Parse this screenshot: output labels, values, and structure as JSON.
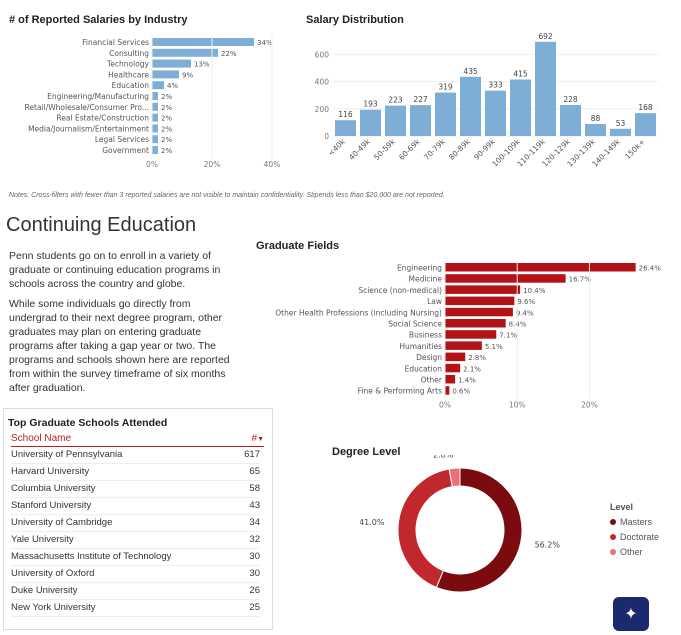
{
  "industry_chart": {
    "title": "# of Reported Salaries by Industry",
    "color": "#7eaed6",
    "axis_ticks": [
      "0%",
      "20%",
      "40%"
    ]
  },
  "salary_chart": {
    "title": "Salary Distribution",
    "color": "#7eaed6",
    "axis_ticks": [
      "0",
      "200",
      "400",
      "600"
    ]
  },
  "notes": "Notes: Cross-filters with fewer than 3 reported salaries are not visible to maintain confidentiality. Stipends less than $20,000 are not reported.",
  "section_title": "Continuing Education",
  "paragraphs": [
    "Penn students go on to enroll in a variety of graduate or continuing education programs in schools across the country and globe.",
    "While some individuals go directly from undergrad to their next degree program, other graduates may plan on entering graduate programs after taking a gap year or two. The programs and schools shown here are reported from within the survey timeframe of six months after graduation."
  ],
  "grad_chart": {
    "title": "Graduate Fields",
    "color": "#b31217",
    "axis_ticks": [
      "0%",
      "10%",
      "20%"
    ]
  },
  "schools_table": {
    "title": "Top Graduate Schools Attended",
    "col_name": "School Name",
    "col_count": "#",
    "rows": [
      {
        "name": "University of Pennsylvania",
        "count": "617"
      },
      {
        "name": "Harvard University",
        "count": "65"
      },
      {
        "name": "Columbia University",
        "count": "58"
      },
      {
        "name": "Stanford University",
        "count": "43"
      },
      {
        "name": "University of Cambridge",
        "count": "34"
      },
      {
        "name": "Yale University",
        "count": "32"
      },
      {
        "name": "Massachusetts Institute of Technology",
        "count": "30"
      },
      {
        "name": "University of Oxford",
        "count": "30"
      },
      {
        "name": "Duke University",
        "count": "26"
      },
      {
        "name": "New York University",
        "count": "25"
      }
    ]
  },
  "degree_chart": {
    "title": "Degree Level",
    "legend_title": "Level"
  },
  "chart_data": [
    {
      "type": "bar",
      "orientation": "horizontal",
      "title": "# of Reported Salaries by Industry",
      "categories": [
        "Financial Services",
        "Consulting",
        "Technology",
        "Healthcare",
        "Education",
        "Engineering/Manufacturing",
        "Retail/Wholesale/Consumer Pro...",
        "Real Estate/Construction",
        "Media/Journalism/Entertainment",
        "Legal Services",
        "Government"
      ],
      "values": [
        34,
        22,
        13,
        9,
        4,
        2,
        2,
        2,
        2,
        2,
        2
      ],
      "labels": [
        "34%",
        "22%",
        "13%",
        "9%",
        "4%",
        "2%",
        "2%",
        "2%",
        "2%",
        "2%",
        "2%"
      ],
      "xlim": [
        0,
        45
      ]
    },
    {
      "type": "bar",
      "title": "Salary Distribution",
      "categories": [
        "<40k",
        "40-49k",
        "50-59k",
        "60-69k",
        "70-79k",
        "80-89k",
        "90-99k",
        "100-109k",
        "110-119k",
        "120-129k",
        "130-139k",
        "140-149k",
        "150k+"
      ],
      "values": [
        116,
        193,
        223,
        227,
        319,
        435,
        333,
        415,
        692,
        228,
        88,
        53,
        168
      ],
      "ylim": [
        0,
        720
      ]
    },
    {
      "type": "bar",
      "orientation": "horizontal",
      "title": "Graduate Fields",
      "categories": [
        "Engineering",
        "Medicine",
        "Science (non-medical)",
        "Law",
        "Other Health Professions (including Nursing)",
        "Social Science",
        "Business",
        "Humanities",
        "Design",
        "Education",
        "Other",
        "Fine & Performing Arts"
      ],
      "values": [
        26.4,
        16.7,
        10.4,
        9.6,
        9.4,
        8.4,
        7.1,
        5.1,
        2.8,
        2.1,
        1.4,
        0.6
      ],
      "labels": [
        "26.4%",
        "16.7%",
        "10.4%",
        "9.6%",
        "9.4%",
        "8.4%",
        "7.1%",
        "5.1%",
        "2.8%",
        "2.1%",
        "1.4%",
        "0.6%"
      ],
      "xlim": [
        0,
        27
      ]
    },
    {
      "type": "pie",
      "title": "Degree Level",
      "categories": [
        "Masters",
        "Doctorate",
        "Other"
      ],
      "values": [
        56.2,
        41.0,
        2.8
      ],
      "labels": [
        "56.2%",
        "41.0%",
        "2.8%"
      ],
      "colors": [
        "#7a0b0f",
        "#c0282e",
        "#e8707a"
      ]
    }
  ]
}
